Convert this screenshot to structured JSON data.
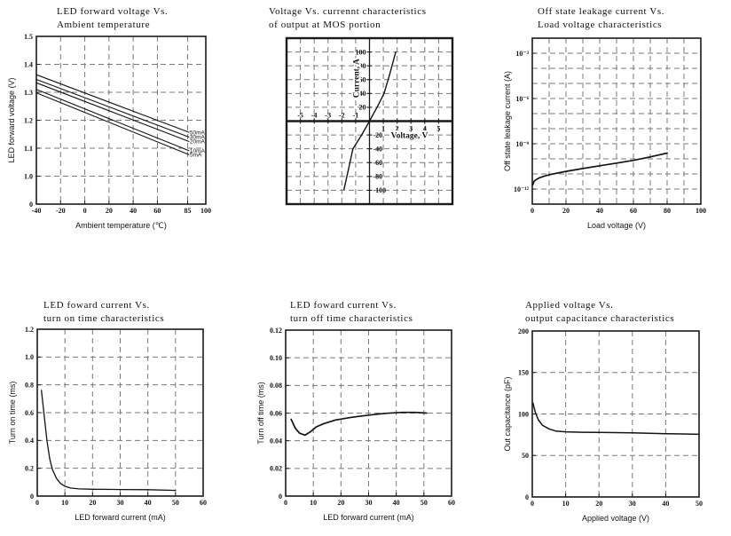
{
  "page": {
    "background": "#ffffff"
  },
  "colors": {
    "curve": "#131313",
    "grid": "#7a7a7a",
    "axis": "#1a1a1a",
    "text": "#131313"
  },
  "chart_data": [
    {
      "id": "led-forward-voltage-vs-ambient-temperature",
      "type": "line",
      "title_lines": [
        "LED forward voltage Vs.",
        "Ambient temperature"
      ],
      "xlabel": "Ambient temperature (℃)",
      "ylabel": "LED forward voltage (V)",
      "xlim": [
        -40,
        100
      ],
      "ylim": [
        0.9,
        1.5
      ],
      "y_axis_note": "broken axis: bottom tick labeled 0",
      "x_tick_values": [
        -40,
        -20,
        0,
        20,
        40,
        60,
        85,
        100
      ],
      "x_tick_labels": [
        "-40",
        "-20",
        "0",
        "20",
        "40",
        "60",
        "85",
        "100"
      ],
      "y_tick_values": [
        0.9,
        1.0,
        1.1,
        1.2,
        1.3,
        1.4,
        1.5
      ],
      "y_tick_labels": [
        "0",
        "1.0",
        "1.1",
        "1.2",
        "1.3",
        "1.4",
        "1.5"
      ],
      "x_grid": [
        -20,
        0,
        20,
        40,
        60,
        85
      ],
      "y_grid": [
        1.0,
        1.1,
        1.2,
        1.3,
        1.4
      ],
      "border_width": 1.6,
      "line_width": 1.1,
      "series": [
        {
          "name": "50mA",
          "points": [
            [
              -40,
              1.363
            ],
            [
              86,
              1.157
            ]
          ]
        },
        {
          "name": "30mA",
          "points": [
            [
              -40,
              1.346
            ],
            [
              86,
              1.14
            ]
          ]
        },
        {
          "name": "20mA",
          "points": [
            [
              -40,
              1.334
            ],
            [
              86,
              1.124
            ]
          ]
        },
        {
          "name": "10mA",
          "points": [
            [
              -40,
              1.31
            ],
            [
              86,
              1.091
            ]
          ]
        },
        {
          "name": "5mA",
          "points": [
            [
              -40,
              1.298
            ],
            [
              86,
              1.077
            ]
          ]
        }
      ]
    },
    {
      "id": "voltage-vs-current-mos-output",
      "type": "quadrant-line",
      "title_lines": [
        "Voltage Vs. currennt characteristics",
        "of output at MOS portion"
      ],
      "xlabel": "Voltage, V",
      "ylabel": "Current, A",
      "xlim": [
        -6,
        6
      ],
      "ylim": [
        -120,
        120
      ],
      "x_tick_values": [
        -5,
        -4,
        -3,
        -2,
        -1,
        1,
        2,
        3,
        4,
        5
      ],
      "x_tick_labels": [
        "-5",
        "-4",
        "-3",
        "-2",
        "-1",
        "1",
        "2",
        "3",
        "4",
        "5"
      ],
      "y_tick_values": [
        100,
        80,
        60,
        40,
        20,
        -20,
        -40,
        -60,
        -80,
        -100
      ],
      "y_tick_labels": [
        "100",
        "80",
        "60",
        "40",
        "20",
        "-20",
        "-40",
        "-60",
        "-80",
        "-100"
      ],
      "x_grid": [
        -5,
        -4,
        -3,
        -2,
        -1,
        1,
        2,
        3,
        4,
        5
      ],
      "y_grid": [
        -100,
        -80,
        -60,
        -40,
        -20,
        20,
        40,
        60,
        80,
        100
      ],
      "border_width": 2.4,
      "line_width": 1.4,
      "series": [
        {
          "points": [
            [
              -1.85,
              -99
            ],
            [
              -1.5,
              -68
            ],
            [
              -1.2,
              -40
            ],
            [
              -0.6,
              -21
            ],
            [
              0,
              0
            ],
            [
              0.6,
              22
            ],
            [
              1.05,
              40
            ],
            [
              1.45,
              67
            ],
            [
              1.9,
              100
            ]
          ]
        }
      ]
    },
    {
      "id": "off-state-leakage-current-vs-load-voltage",
      "type": "line",
      "y_scale": "log10-exponent",
      "title_lines": [
        "Off state leakage current Vs.",
        "Load voltage characteristics"
      ],
      "xlabel": "Load voltage (V)",
      "ylabel": "Off state leakage current (A)",
      "xlim": [
        0,
        100
      ],
      "ylim": [
        -13,
        -2
      ],
      "x_tick_values": [
        0,
        20,
        40,
        60,
        80,
        100
      ],
      "x_tick_labels": [
        "0",
        "20",
        "40",
        "60",
        "80",
        "100"
      ],
      "y_tick_values": [
        -3,
        -6,
        -9,
        -12
      ],
      "y_tick_labels": [
        "10⁻³",
        "10⁻⁶",
        "10⁻⁹",
        "10⁻¹²"
      ],
      "x_grid": [
        10,
        20,
        30,
        40,
        50,
        60,
        70,
        80,
        90
      ],
      "y_grid": [
        -3,
        -4,
        -5,
        -6,
        -7,
        -8,
        -9,
        -10,
        -11,
        -12
      ],
      "border_width": 1.6,
      "line_width": 1.7,
      "series": [
        {
          "points": [
            [
              0.3,
              -11.72
            ],
            [
              1,
              -11.5
            ],
            [
              2,
              -11.4
            ],
            [
              4,
              -11.27
            ],
            [
              7,
              -11.15
            ],
            [
              10,
              -11.05
            ],
            [
              15,
              -10.94
            ],
            [
              20,
              -10.83
            ],
            [
              30,
              -10.64
            ],
            [
              40,
              -10.46
            ],
            [
              50,
              -10.28
            ],
            [
              60,
              -10.1
            ],
            [
              70,
              -9.87
            ],
            [
              80,
              -9.62
            ]
          ]
        }
      ]
    },
    {
      "id": "led-forward-current-vs-turn-on-time",
      "type": "line",
      "title_lines": [
        "LED foward current Vs.",
        "turn on time characteristics"
      ],
      "xlabel": "LED forward current (mA)",
      "ylabel": "Turn on time (ms)",
      "xlim": [
        0,
        60
      ],
      "ylim": [
        0,
        1.2
      ],
      "x_tick_values": [
        0,
        10,
        20,
        30,
        40,
        50,
        60
      ],
      "x_tick_labels": [
        "0",
        "10",
        "20",
        "30",
        "40",
        "50",
        "60"
      ],
      "y_tick_values": [
        0,
        0.2,
        0.4,
        0.6,
        0.8,
        1.0,
        1.2
      ],
      "y_tick_labels": [
        "0",
        "0.2",
        "0.4",
        "0.6",
        "0.8",
        "1.0",
        "1.2"
      ],
      "x_grid": [
        10,
        20,
        30,
        40,
        50
      ],
      "y_grid": [
        0.2,
        0.4,
        0.6,
        0.8,
        1.0
      ],
      "border_width": 1.6,
      "line_width": 1.3,
      "series": [
        {
          "points": [
            [
              1.5,
              0.76
            ],
            [
              2.5,
              0.58
            ],
            [
              3.5,
              0.4
            ],
            [
              4.5,
              0.27
            ],
            [
              5.5,
              0.19
            ],
            [
              7,
              0.125
            ],
            [
              8.5,
              0.09
            ],
            [
              10,
              0.07
            ],
            [
              12,
              0.058
            ],
            [
              15,
              0.052
            ],
            [
              20,
              0.049
            ],
            [
              30,
              0.047
            ],
            [
              40,
              0.046
            ],
            [
              50,
              0.041
            ]
          ]
        }
      ]
    },
    {
      "id": "led-forward-current-vs-turn-off-time",
      "type": "line",
      "title_lines": [
        "LED foward current Vs.",
        "turn off time characteristics"
      ],
      "xlabel": "LED forward current (mA)",
      "ylabel": "Turn off time (ms)",
      "xlim": [
        0,
        60
      ],
      "ylim": [
        0,
        0.12
      ],
      "x_tick_values": [
        0,
        10,
        20,
        30,
        40,
        50,
        60
      ],
      "x_tick_labels": [
        "0",
        "10",
        "20",
        "30",
        "40",
        "50",
        "60"
      ],
      "y_tick_values": [
        0,
        0.02,
        0.04,
        0.06,
        0.08,
        0.1,
        0.12
      ],
      "y_tick_labels": [
        "0",
        "0.02",
        "0.04",
        "0.06",
        "0.08",
        "0.10",
        "0.12"
      ],
      "x_grid": [
        10,
        20,
        30,
        40,
        50
      ],
      "y_grid": [
        0.02,
        0.04,
        0.06,
        0.08,
        0.1
      ],
      "border_width": 1.6,
      "line_width": 1.7,
      "series": [
        {
          "points": [
            [
              2,
              0.0555
            ],
            [
              3.5,
              0.049
            ],
            [
              5,
              0.0455
            ],
            [
              7,
              0.044
            ],
            [
              9,
              0.0465
            ],
            [
              11,
              0.05
            ],
            [
              14,
              0.0525
            ],
            [
              18,
              0.055
            ],
            [
              24,
              0.057
            ],
            [
              30,
              0.0585
            ],
            [
              36,
              0.0598
            ],
            [
              42,
              0.0605
            ],
            [
              47,
              0.0605
            ],
            [
              51,
              0.06
            ]
          ]
        }
      ]
    },
    {
      "id": "applied-voltage-vs-output-capacitance",
      "type": "line",
      "title_lines": [
        "Applied voltage Vs.",
        "output capacitance characteristics"
      ],
      "xlabel": "Applied voltage (V)",
      "ylabel": "Out capacitance (pF)",
      "xlim": [
        0,
        50
      ],
      "ylim": [
        0,
        200
      ],
      "x_tick_values": [
        0,
        10,
        20,
        30,
        40,
        50
      ],
      "x_tick_labels": [
        "0",
        "10",
        "20",
        "30",
        "40",
        "50"
      ],
      "y_tick_values": [
        0,
        50,
        100,
        150,
        200
      ],
      "y_tick_labels": [
        "0",
        "50",
        "100",
        "150",
        "200"
      ],
      "x_grid": [
        10,
        20,
        30,
        40
      ],
      "y_grid": [
        50,
        100,
        150
      ],
      "border_width": 1.6,
      "line_width": 1.5,
      "series": [
        {
          "points": [
            [
              0.2,
              113
            ],
            [
              0.9,
              102
            ],
            [
              1.8,
              93
            ],
            [
              3,
              86.5
            ],
            [
              5,
              82
            ],
            [
              7,
              79.5
            ],
            [
              10,
              78.5
            ],
            [
              15,
              78
            ],
            [
              20,
              77.8
            ],
            [
              30,
              77.2
            ],
            [
              40,
              76.3
            ],
            [
              50,
              75.5
            ]
          ]
        }
      ]
    }
  ]
}
